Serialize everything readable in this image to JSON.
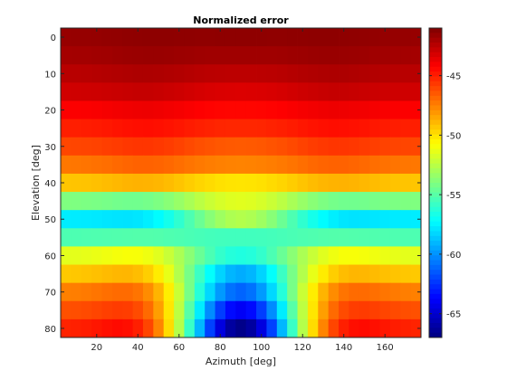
{
  "chart_data": {
    "type": "heatmap",
    "title": "Normalized error",
    "xlabel": "Azimuth [deg]",
    "ylabel": "Elevation [deg]",
    "x": [
      0,
      5,
      10,
      15,
      20,
      25,
      30,
      35,
      40,
      45,
      50,
      55,
      60,
      65,
      70,
      75,
      80,
      85,
      90,
      95,
      100,
      105,
      110,
      115,
      120,
      125,
      130,
      135,
      140,
      145,
      150,
      155,
      160,
      165,
      170,
      175,
      180
    ],
    "y": [
      0,
      5,
      10,
      15,
      20,
      25,
      30,
      35,
      40,
      45,
      50,
      55,
      60,
      65,
      70,
      75,
      80,
      85
    ],
    "xlim": [
      2.5,
      177.5
    ],
    "ylim": [
      -2.5,
      82.5
    ],
    "xticks": [
      20,
      40,
      60,
      80,
      100,
      120,
      140,
      160
    ],
    "yticks": [
      0,
      10,
      20,
      30,
      40,
      50,
      60,
      70,
      80
    ],
    "colorbar": {
      "range": [
        -67,
        -41
      ],
      "ticks": [
        -45,
        -50,
        -55,
        -60,
        -65
      ],
      "colormap": "jet"
    },
    "rows": [
      {
        "elevation": 0,
        "edge": -41.5,
        "center": -41.3,
        "depth": 0.5
      },
      {
        "elevation": 5,
        "edge": -41.8,
        "center": -41.7,
        "depth": 0.7
      },
      {
        "elevation": 10,
        "edge": -42.3,
        "center": -42.4,
        "depth": 0.8
      },
      {
        "elevation": 15,
        "edge": -42.9,
        "center": -43.2,
        "depth": 0.8
      },
      {
        "elevation": 20,
        "edge": -44.0,
        "center": -44.2,
        "depth": 1.0
      },
      {
        "elevation": 25,
        "edge": -44.8,
        "center": -45.0,
        "depth": 1.2
      },
      {
        "elevation": 30,
        "edge": -45.8,
        "center": -46.3,
        "depth": 1.3
      },
      {
        "elevation": 35,
        "edge": -47.0,
        "center": -47.3,
        "depth": 1.5
      },
      {
        "elevation": 40,
        "edge": -49.0,
        "center": -49.8,
        "depth": 1.5
      },
      {
        "elevation": 45,
        "edge": -54.3,
        "center": -51.8,
        "depth": -1.5
      },
      {
        "elevation": 50,
        "edge": -58.0,
        "center": -53.0,
        "depth": -1.6
      },
      {
        "elevation": 55,
        "edge": -55.2,
        "center": -55.5,
        "depth": 0.5
      },
      {
        "elevation": 60,
        "edge": -51.0,
        "center": -56.0,
        "depth": 2.5
      },
      {
        "elevation": 65,
        "edge": -48.8,
        "center": -58.8,
        "depth": 3.0
      },
      {
        "elevation": 70,
        "edge": -46.8,
        "center": -60.5,
        "depth": 3.8
      },
      {
        "elevation": 75,
        "edge": -45.5,
        "center": -63.2,
        "depth": 4.2
      },
      {
        "elevation": 80,
        "edge": -44.2,
        "center": -65.8,
        "depth": 5.0
      },
      {
        "elevation": 85,
        "edge": -43.0,
        "center": -67.0,
        "depth": 5.5
      }
    ]
  }
}
